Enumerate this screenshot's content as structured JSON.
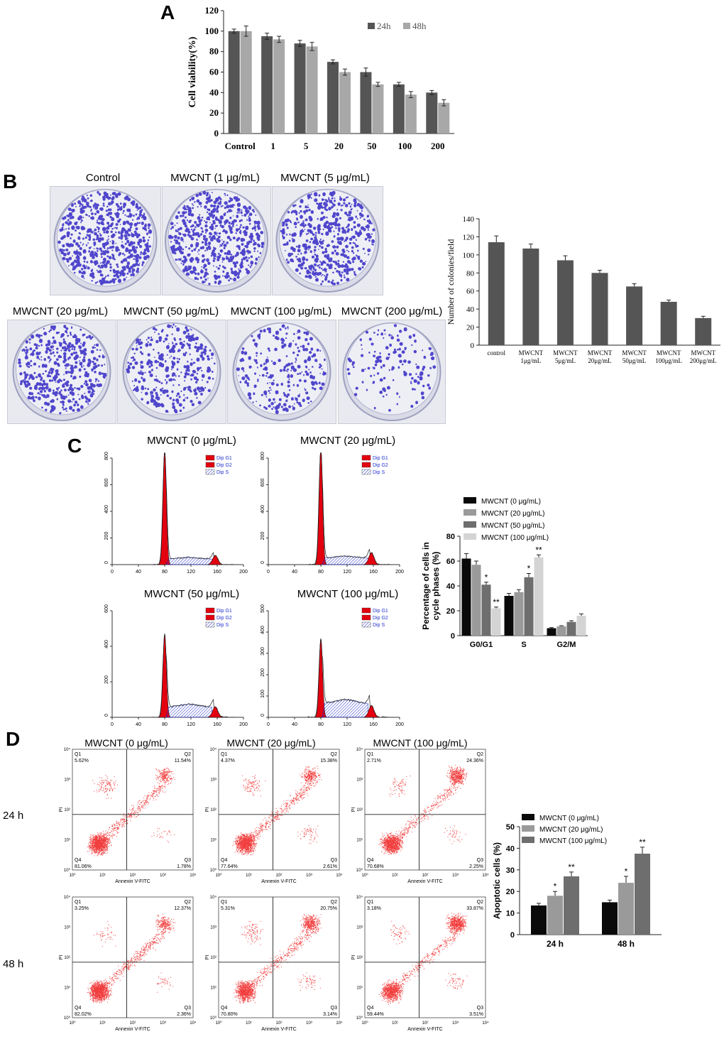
{
  "panels": {
    "a": "A",
    "b": "B",
    "c": "C",
    "d": "D"
  },
  "colors": {
    "dark_bar": "#555555",
    "light_bar": "#a8a8a8",
    "black_bar": "#0a0a0a",
    "gray_bar": "#9a9a9a",
    "mid_bar": "#6e6e6e",
    "pale_bar": "#d4d4d4",
    "hist_red": "#e3000f",
    "hist_blue": "#2230c8",
    "flow_red": "#ee1c1c",
    "colony": "#3a2fc6"
  },
  "colony_panel": {
    "dishes": [
      {
        "label": "Control",
        "density": 1.0
      },
      {
        "label": "MWCNT (1 μg/mL)",
        "density": 0.92
      },
      {
        "label": "MWCNT (5 μg/mL)",
        "density": 0.82
      },
      {
        "label": "MWCNT (20 μg/mL)",
        "density": 0.7
      },
      {
        "label": "MWCNT (50 μg/mL)",
        "density": 0.55
      },
      {
        "label": "MWCNT (100 μg/mL)",
        "density": 0.4
      },
      {
        "label": "MWCNT (200 μg/mL)",
        "density": 0.22
      }
    ]
  },
  "cycle_panel": {
    "histograms": [
      {
        "title": "MWCNT (0 μg/mL)",
        "ymax": 800,
        "yticks": [
          0,
          200,
          400,
          600,
          800
        ],
        "g1_peak": 860,
        "g2_peak": 70,
        "s_level": 55
      },
      {
        "title": "MWCNT (20 μg/mL)",
        "ymax": 800,
        "yticks": [
          0,
          200,
          400,
          600,
          800
        ],
        "g1_peak": 880,
        "g2_peak": 90,
        "s_level": 65
      },
      {
        "title": "MWCNT (50 μg/mL)",
        "ymax": 600,
        "yticks": [
          0,
          200,
          400,
          600
        ],
        "g1_peak": 470,
        "g2_peak": 60,
        "s_level": 75
      },
      {
        "title": "MWCNT (100 μg/mL)",
        "ymax": 500,
        "yticks": [
          0,
          100,
          200,
          300,
          400,
          500
        ],
        "g1_peak": 370,
        "g2_peak": 55,
        "s_level": 85
      }
    ],
    "hist_xticks": [
      0,
      40,
      80,
      120,
      160,
      200
    ],
    "hist_legend": [
      "Dip G1",
      "Dip G2",
      "Dip S"
    ]
  },
  "flow_panel": {
    "plots": [
      {
        "title": "MWCNT (0 μg/mL)",
        "row": "24 h",
        "q1": "Q1",
        "q2": "Q2",
        "q3": "Q3",
        "q4": "Q4",
        "q1v": "5.62%",
        "q2v": "11.54%",
        "q3v": "1.78%",
        "q4v": "81.06%"
      },
      {
        "title": "MWCNT (20 μg/mL)",
        "row": "24 h",
        "q1": "Q1",
        "q2": "Q2",
        "q3": "Q3",
        "q4": "Q4",
        "q1v": "4.37%",
        "q2v": "15.38%",
        "q3v": "2.61%",
        "q4v": "77.64%"
      },
      {
        "title": "MWCNT (100 μg/mL)",
        "row": "24 h",
        "q1": "Q1",
        "q2": "Q2",
        "q3": "Q3",
        "q4": "Q4",
        "q1v": "2.71%",
        "q2v": "24.36%",
        "q3v": "2.25%",
        "q4v": "70.68%"
      },
      {
        "title": "",
        "row": "48 h",
        "q1": "Q1",
        "q2": "Q2",
        "q3": "Q3",
        "q4": "Q4",
        "q1v": "3.25%",
        "q2v": "12.37%",
        "q3v": "2.36%",
        "q4v": "82.02%"
      },
      {
        "title": "",
        "row": "48 h",
        "q1": "Q1",
        "q2": "Q2",
        "q3": "Q3",
        "q4": "Q4",
        "q1v": "5.31%",
        "q2v": "20.75%",
        "q3v": "3.14%",
        "q4v": "70.80%"
      },
      {
        "title": "",
        "row": "48 h",
        "q1": "Q1",
        "q2": "Q2",
        "q3": "Q3",
        "q4": "Q4",
        "q1v": "3.18%",
        "q2v": "33.87%",
        "q3v": "3.51%",
        "q4v": "59.44%"
      }
    ],
    "row_labels": [
      "24 h",
      "48 h"
    ],
    "xlabel": "Annexin V-FITC",
    "ylabel": "PI",
    "log_ticks": [
      "10⁰",
      "10¹",
      "10²",
      "10³",
      "10⁴"
    ]
  },
  "chart_data": [
    {
      "id": "A",
      "type": "bar",
      "title": "",
      "xlabel": "",
      "ylabel": "Cell viability(%)",
      "ylim": [
        0,
        120
      ],
      "yticks": [
        0,
        20,
        40,
        60,
        80,
        100,
        120
      ],
      "categories": [
        "Control",
        "1",
        "5",
        "20",
        "50",
        "100",
        "200"
      ],
      "series": [
        {
          "name": "24h",
          "color": "#555555",
          "values": [
            100,
            95,
            88,
            70,
            60,
            48,
            40
          ],
          "errors": [
            2,
            3,
            3,
            2,
            4,
            2,
            2
          ]
        },
        {
          "name": "48h",
          "color": "#a8a8a8",
          "values": [
            100,
            92,
            85,
            60,
            48,
            38,
            30
          ],
          "errors": [
            5,
            3,
            4,
            3,
            2,
            3,
            3
          ]
        }
      ],
      "legend": "top-right"
    },
    {
      "id": "B",
      "type": "bar",
      "title": "",
      "xlabel": "",
      "ylabel": "Number of colonies/field",
      "ylim": [
        0,
        140
      ],
      "yticks": [
        0,
        20,
        40,
        60,
        80,
        100,
        120,
        140
      ],
      "categories": [
        [
          "control"
        ],
        [
          "MWCNT",
          "1μg/mL"
        ],
        [
          "MWCNT",
          "5μg/mL"
        ],
        [
          "MWCNT",
          "20μg/mL"
        ],
        [
          "MWCNT",
          "50μg/mL"
        ],
        [
          "MWCNT",
          "100μg/mL"
        ],
        [
          "MWCNT",
          "200μg/mL"
        ]
      ],
      "series": [
        {
          "name": "colonies",
          "color": "#555555",
          "values": [
            114,
            107,
            94,
            80,
            65,
            48,
            30
          ],
          "errors": [
            7,
            5,
            5,
            3,
            3,
            2,
            2
          ]
        }
      ]
    },
    {
      "id": "C",
      "type": "bar",
      "title": "",
      "xlabel": "",
      "ylabel": "Percentage of cells in cycle phases (%)",
      "ylim": [
        0,
        80
      ],
      "yticks": [
        0,
        20,
        40,
        60,
        80
      ],
      "categories": [
        "G0/G1",
        "S",
        "G2/M"
      ],
      "series": [
        {
          "name": "MWCNT (0 μg/mL)",
          "color": "#0a0a0a",
          "values": [
            62,
            32,
            6
          ],
          "errors": [
            4,
            2,
            0.5
          ],
          "marks": [
            "",
            "",
            ""
          ]
        },
        {
          "name": "MWCNT (20 μg/mL)",
          "color": "#9a9a9a",
          "values": [
            57,
            35,
            7.5
          ],
          "errors": [
            3,
            2,
            0.5
          ],
          "marks": [
            "",
            "",
            ""
          ]
        },
        {
          "name": "MWCNT (50 μg/mL)",
          "color": "#6e6e6e",
          "values": [
            41,
            47,
            11
          ],
          "errors": [
            2,
            3,
            1
          ],
          "marks": [
            "*",
            "*",
            ""
          ]
        },
        {
          "name": "MWCNT (100 μg/mL)",
          "color": "#d4d4d4",
          "values": [
            22,
            63,
            16
          ],
          "errors": [
            1,
            2,
            1.5
          ],
          "marks": [
            "**",
            "**",
            ""
          ]
        }
      ],
      "legend": "top"
    },
    {
      "id": "D",
      "type": "bar",
      "title": "",
      "xlabel": "",
      "ylabel": "Apoptotic cells (%)",
      "ylim": [
        0,
        50
      ],
      "yticks": [
        0,
        10,
        20,
        30,
        40,
        50
      ],
      "categories": [
        "24 h",
        "48 h"
      ],
      "series": [
        {
          "name": "MWCNT (0 μg/mL)",
          "color": "#0a0a0a",
          "values": [
            13.5,
            15
          ],
          "errors": [
            1,
            1
          ],
          "marks": [
            "",
            ""
          ]
        },
        {
          "name": "MWCNT (20 μg/mL)",
          "color": "#9a9a9a",
          "values": [
            18,
            24
          ],
          "errors": [
            2,
            3
          ],
          "marks": [
            "*",
            "*"
          ]
        },
        {
          "name": "MWCNT (100 μg/mL)",
          "color": "#6e6e6e",
          "values": [
            27,
            37.5
          ],
          "errors": [
            2,
            3
          ],
          "marks": [
            "**",
            "**"
          ]
        }
      ],
      "legend": "top"
    }
  ]
}
